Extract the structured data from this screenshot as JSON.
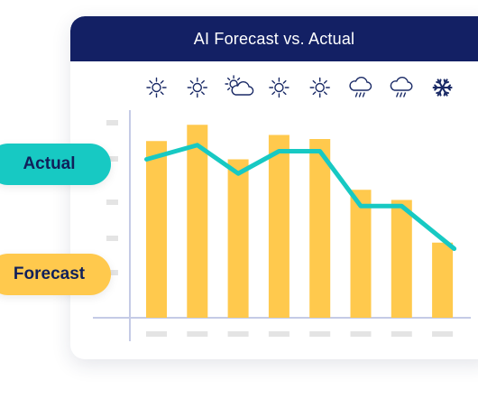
{
  "header": {
    "title": "AI Forecast vs. Actual"
  },
  "legend": {
    "actual_label": "Actual",
    "forecast_label": "Forecast"
  },
  "colors": {
    "header": "#132064",
    "actual": "#17c9c3",
    "forecast": "#ffc94d",
    "axis": "#c5cbe6",
    "tick": "#e4e4e4"
  },
  "weather_icons": [
    "sun-icon",
    "sun-icon",
    "partly-cloudy-icon",
    "sun-icon",
    "sun-icon",
    "rain-icon",
    "rain-icon",
    "snowflake-icon"
  ],
  "chart_data": {
    "type": "bar",
    "categories": [
      "",
      "",
      "",
      "",
      "",
      "",
      "",
      ""
    ],
    "ylim": [
      0,
      100
    ],
    "series": [
      {
        "name": "Forecast",
        "type": "bar",
        "values": [
          87,
          95,
          78,
          90,
          88,
          63,
          58,
          37
        ]
      },
      {
        "name": "Actual",
        "type": "line",
        "values": [
          78,
          85,
          71,
          82,
          82,
          55,
          55,
          34
        ]
      }
    ],
    "grid": false,
    "legend": "left"
  }
}
